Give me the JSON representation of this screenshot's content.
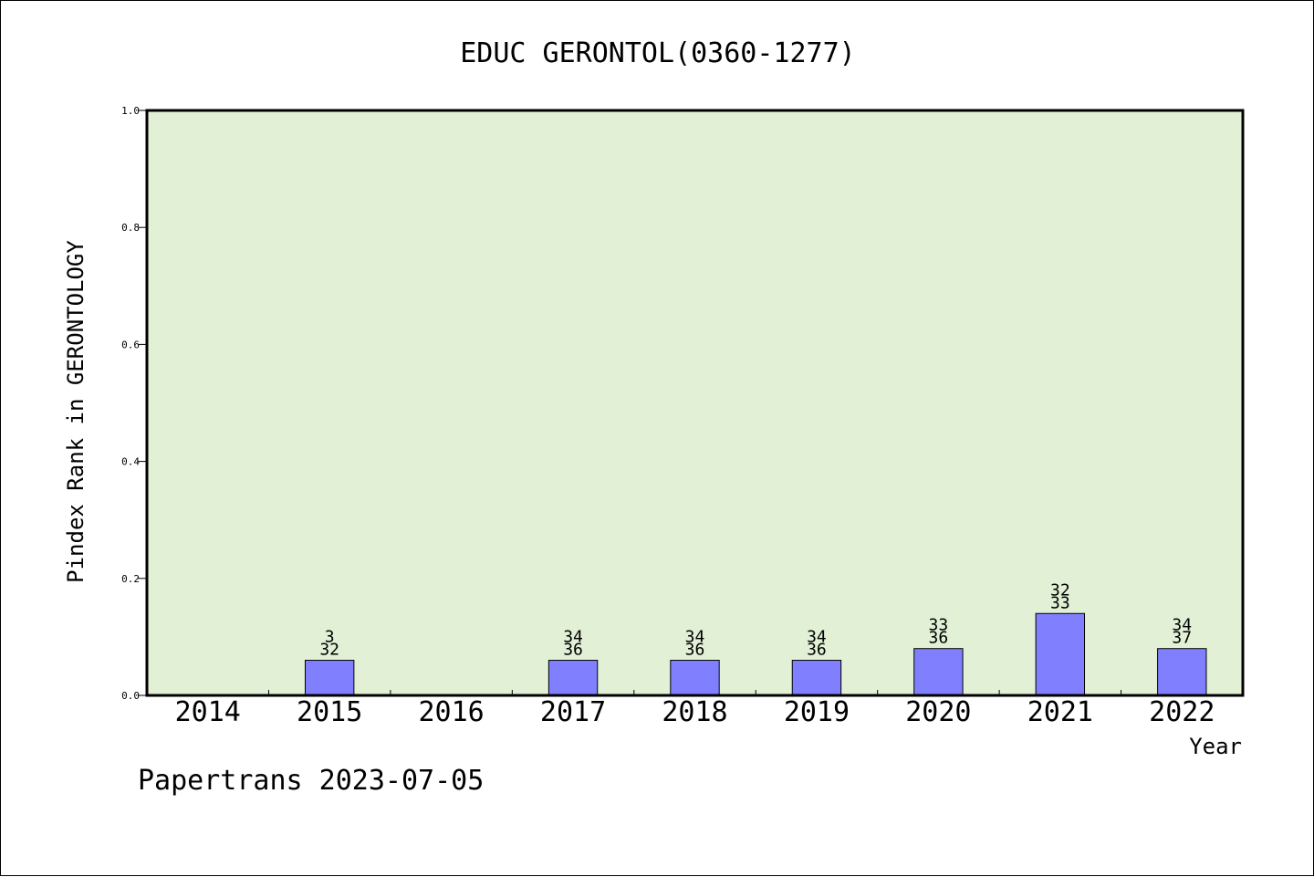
{
  "chart_data": {
    "type": "bar",
    "title": "EDUC GERONTOL(0360-1277)",
    "xlabel": "Year",
    "ylabel": "Pindex Rank in GERONTOLOGY",
    "ylim": [
      0,
      1.0
    ],
    "yticks": [
      "0.0",
      "0.2",
      "0.4",
      "0.6",
      "0.8",
      "1.0"
    ],
    "ytick_values": [
      0,
      0.2,
      0.4,
      0.6,
      0.8,
      1.0
    ],
    "categories": [
      "2014",
      "2015",
      "2016",
      "2017",
      "2018",
      "2019",
      "2020",
      "2021",
      "2022"
    ],
    "values": [
      0,
      0.06,
      0,
      0.06,
      0.06,
      0.06,
      0.08,
      0.14,
      0.08
    ],
    "labels_top": [
      "",
      "3",
      "",
      "34",
      "34",
      "34",
      "33",
      "32",
      "34"
    ],
    "labels_bottom": [
      "",
      "32",
      "",
      "36",
      "36",
      "36",
      "36",
      "33",
      "37"
    ],
    "grid": false,
    "plot_background": "#e2f0d6",
    "bar_color": "#8080ff"
  },
  "footer": "Papertrans 2023-07-05"
}
